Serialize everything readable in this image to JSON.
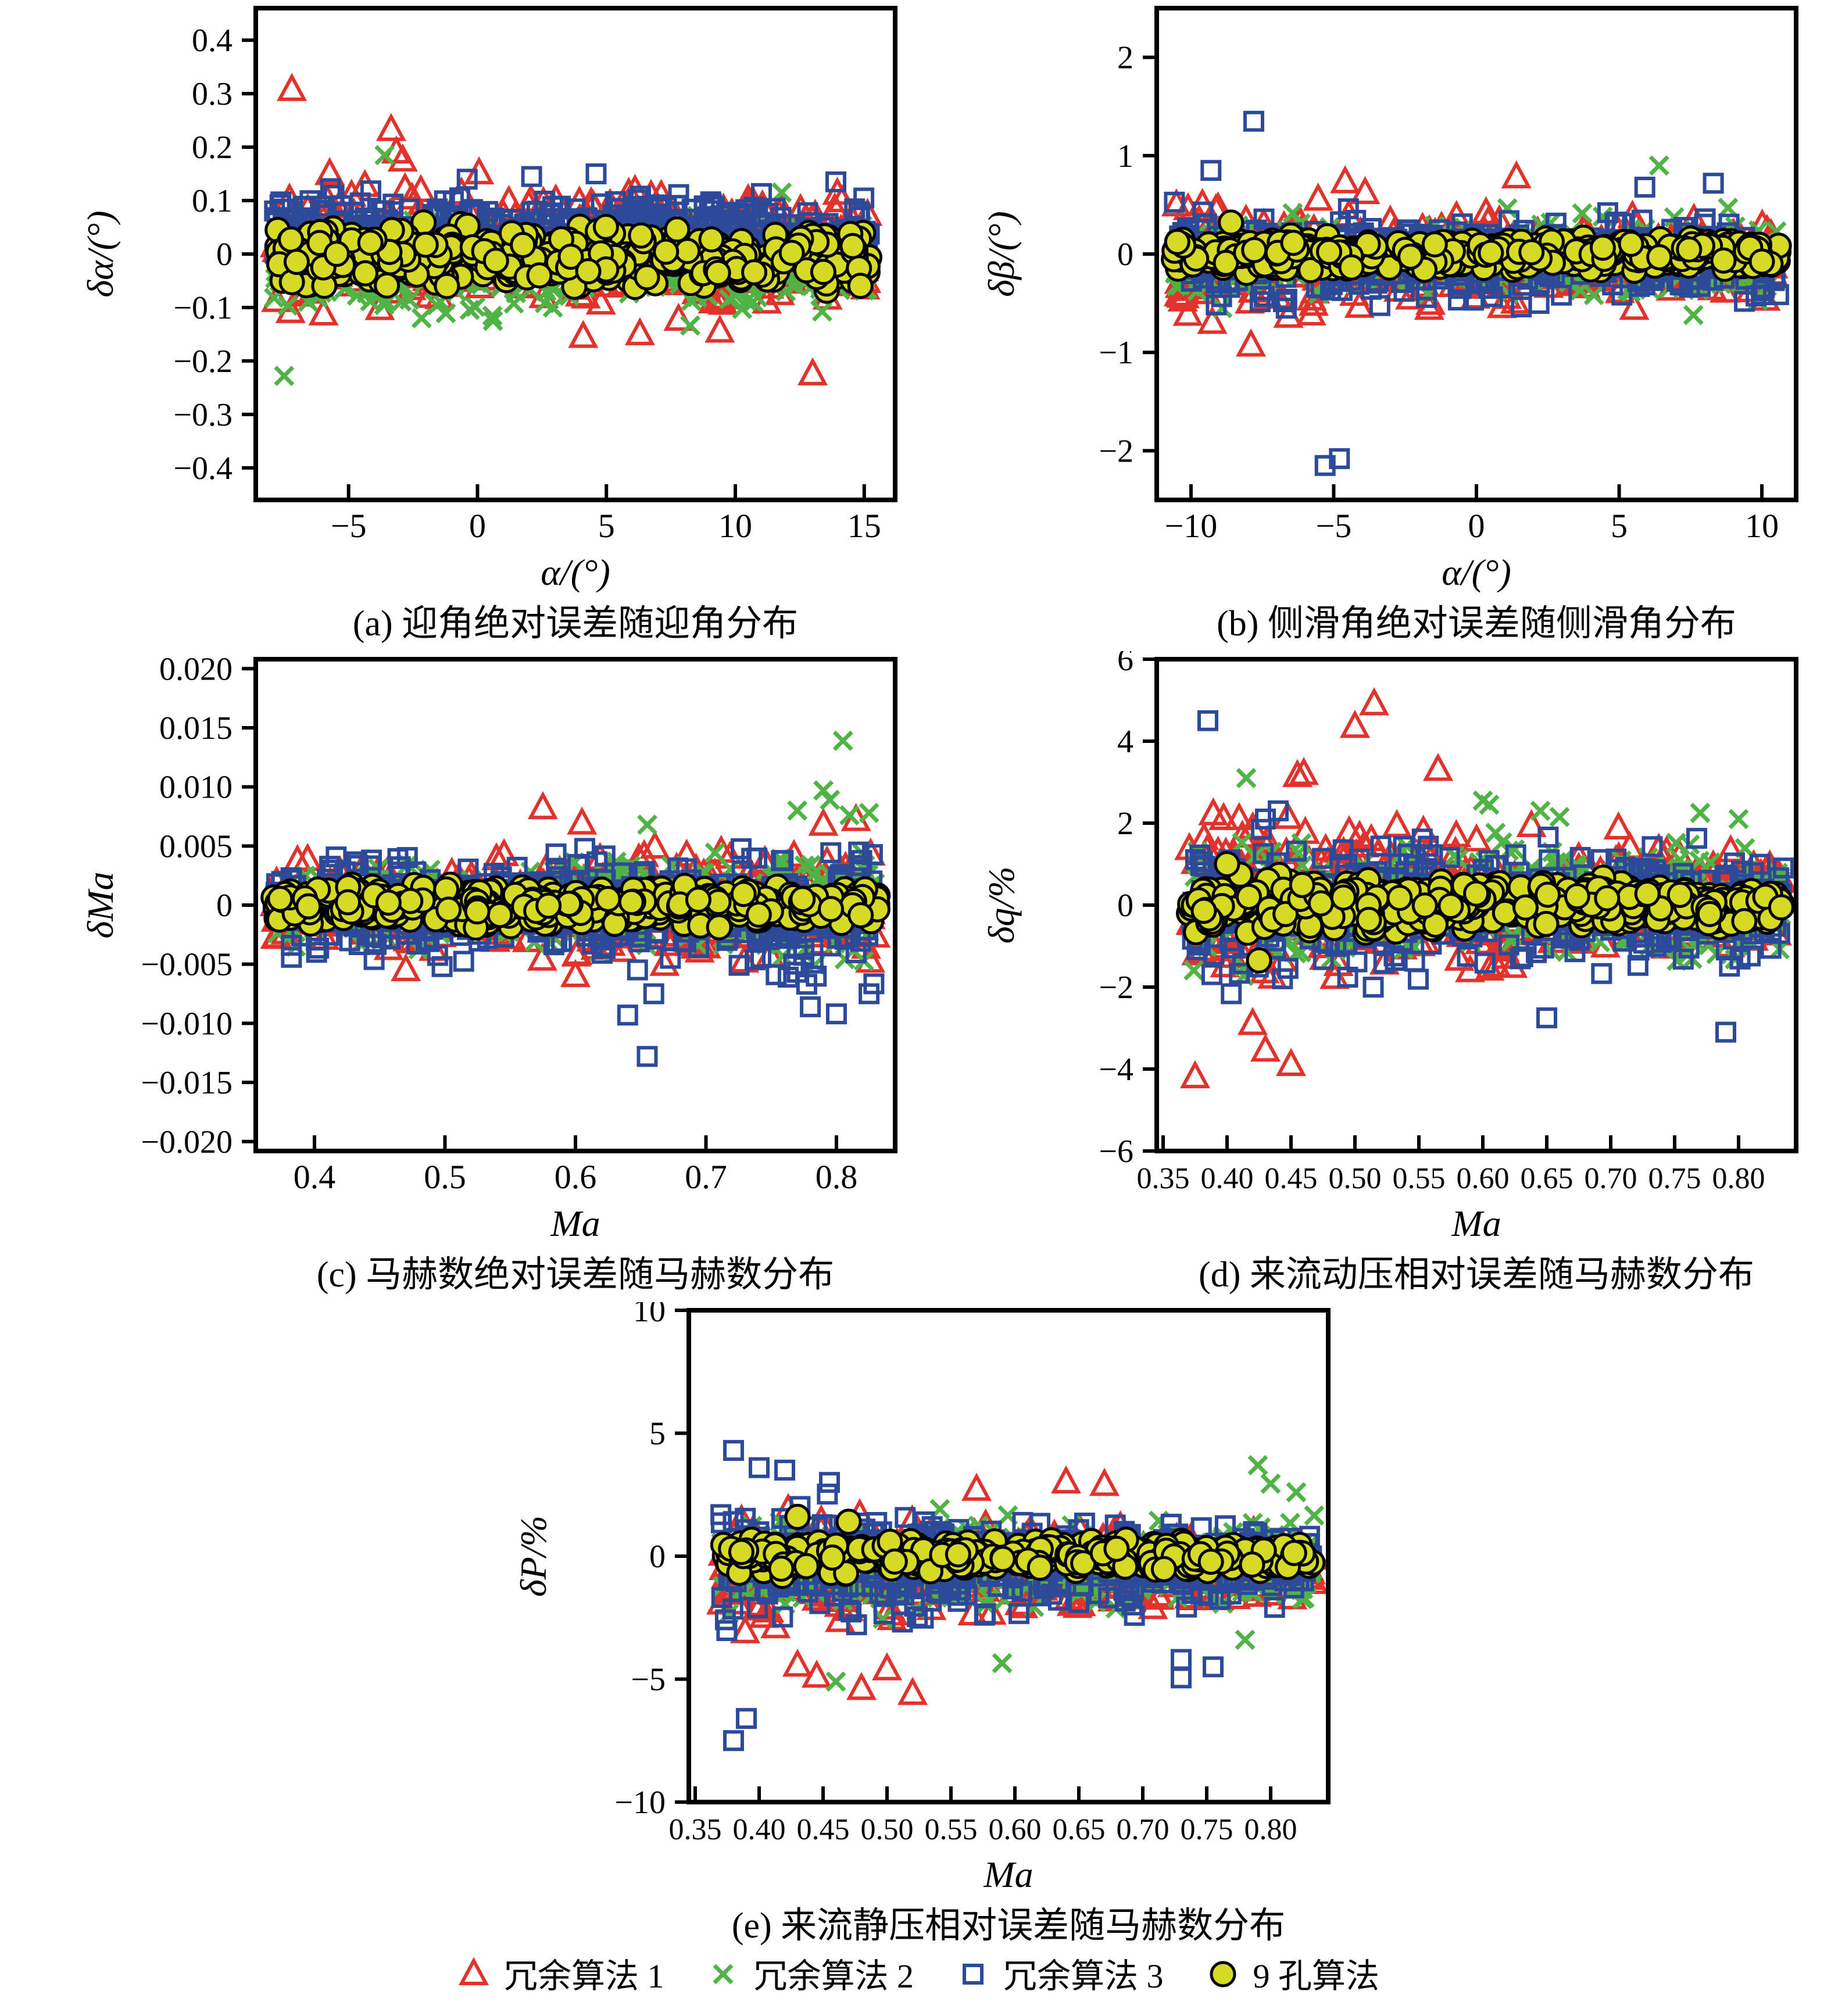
{
  "page": {
    "background": "#ffffff"
  },
  "legend": {
    "items": [
      {
        "label": "冗余算法 1",
        "marker": "triangle-open",
        "color": "#e2322c"
      },
      {
        "label": "冗余算法 2",
        "marker": "x-cross",
        "color": "#4fb345"
      },
      {
        "label": "冗余算法 3",
        "marker": "square-open",
        "color": "#2d4a9a"
      },
      {
        "label": "9 孔算法",
        "marker": "circle-filled",
        "color": "#d6da25",
        "edge_color": "#000000"
      }
    ]
  },
  "chart_data": [
    {
      "id": "a",
      "type": "scatter",
      "caption": "(a) 迎角绝对误差随迎角分布",
      "xlabel": "α/(°)",
      "ylabel": "δα/(°)",
      "xlim": [
        -8.6,
        16.2
      ],
      "ylim": [
        -0.46,
        0.46
      ],
      "xticks": [
        -5,
        0,
        5,
        10,
        15
      ],
      "xtick_labels": [
        "−5",
        "0",
        "5",
        "10",
        "15"
      ],
      "yticks": [
        -0.4,
        -0.3,
        -0.2,
        -0.1,
        0,
        0.1,
        0.2,
        0.3,
        0.4
      ],
      "ytick_labels": [
        "−0.4",
        "−0.3",
        "−0.2",
        "−0.1",
        "0",
        "0.1",
        "0.2",
        "0.3",
        "0.4"
      ],
      "grid": false,
      "legend_position": "none",
      "series": [
        {
          "name": "冗余算法 1",
          "marker": "triangle-open",
          "color": "#e2322c",
          "cloud": {
            "n": 380,
            "x_range": [
              -7.9,
              15.2
            ],
            "y_center": 0.01,
            "y_halfwidth": [
              0.17,
              0.13
            ]
          },
          "outliers": [
            [
              -7.2,
              0.307
            ],
            [
              -3.35,
              0.232
            ],
            [
              -3.15,
              0.19
            ],
            [
              -2.9,
              0.175
            ],
            [
              13.0,
              -0.225
            ],
            [
              4.1,
              -0.155
            ],
            [
              9.4,
              -0.145
            ],
            [
              6.3,
              -0.15
            ]
          ]
        },
        {
          "name": "冗余算法 2",
          "marker": "x-cross",
          "color": "#4fb345",
          "cloud": {
            "n": 320,
            "x_range": [
              -7.9,
              15.2
            ],
            "y_center": -0.02,
            "y_halfwidth": [
              0.14,
              0.12
            ]
          },
          "outliers": [
            [
              -3.6,
              0.185
            ],
            [
              -7.5,
              -0.228
            ],
            [
              0.6,
              -0.125
            ],
            [
              11.8,
              0.115
            ]
          ]
        },
        {
          "name": "冗余算法 3",
          "marker": "square-open",
          "color": "#2d4a9a",
          "cloud": {
            "n": 380,
            "x_range": [
              -7.9,
              15.2
            ],
            "y_center": 0.045,
            "y_halfwidth": [
              0.1,
              0.095
            ]
          },
          "outliers": [
            [
              13.9,
              0.135
            ],
            [
              4.6,
              0.15
            ],
            [
              2.1,
              0.145
            ],
            [
              -0.4,
              0.14
            ]
          ]
        },
        {
          "name": "9 孔算法",
          "marker": "circle-filled",
          "color": "#d6da25",
          "edge_color": "#000000",
          "cloud": {
            "n": 520,
            "x_range": [
              -7.9,
              15.2
            ],
            "y_center": -0.005,
            "y_halfwidth": [
              0.075,
              0.075
            ]
          },
          "outliers": []
        }
      ]
    },
    {
      "id": "b",
      "type": "scatter",
      "caption": "(b) 侧滑角绝对误差随侧滑角分布",
      "xlabel": "α/(°)",
      "ylabel": "δβ/(°)",
      "xlim": [
        -11.2,
        11.2
      ],
      "ylim": [
        -2.5,
        2.5
      ],
      "xticks": [
        -10,
        -5,
        0,
        5,
        10
      ],
      "xtick_labels": [
        "−10",
        "−5",
        "0",
        "5",
        "10"
      ],
      "yticks": [
        -2,
        -1,
        0,
        1,
        2
      ],
      "ytick_labels": [
        "−2",
        "−1",
        "0",
        "1",
        "2"
      ],
      "grid": false,
      "legend_position": "none",
      "series": [
        {
          "name": "冗余算法 1",
          "marker": "triangle-open",
          "color": "#e2322c",
          "cloud": {
            "n": 380,
            "x_range": [
              -10.6,
              10.6
            ],
            "y_center": -0.05,
            "y_halfwidth": [
              0.75,
              0.55
            ]
          },
          "outliers": [
            [
              -7.9,
              -0.93
            ],
            [
              -9.6,
              0.5
            ],
            [
              -4.6,
              0.73
            ],
            [
              1.4,
              0.78
            ],
            [
              -3.9,
              0.62
            ]
          ]
        },
        {
          "name": "冗余算法 2",
          "marker": "x-cross",
          "color": "#4fb345",
          "cloud": {
            "n": 320,
            "x_range": [
              -10.6,
              10.6
            ],
            "y_center": -0.05,
            "y_halfwidth": [
              0.6,
              0.55
            ]
          },
          "outliers": [
            [
              6.4,
              0.9
            ],
            [
              7.6,
              -0.62
            ],
            [
              -8.9,
              -0.55
            ]
          ]
        },
        {
          "name": "冗余算法 3",
          "marker": "square-open",
          "color": "#2d4a9a",
          "cloud": {
            "n": 380,
            "x_range": [
              -10.6,
              10.6
            ],
            "y_center": -0.05,
            "y_halfwidth": [
              0.65,
              0.6
            ]
          },
          "outliers": [
            [
              -7.8,
              1.35
            ],
            [
              -5.3,
              -2.15
            ],
            [
              -4.8,
              -2.08
            ],
            [
              8.3,
              0.72
            ],
            [
              -9.3,
              0.85
            ],
            [
              5.9,
              0.68
            ]
          ]
        },
        {
          "name": "9 孔算法",
          "marker": "circle-filled",
          "color": "#d6da25",
          "edge_color": "#000000",
          "cloud": {
            "n": 520,
            "x_range": [
              -10.6,
              10.6
            ],
            "y_center": 0,
            "y_halfwidth": [
              0.22,
              0.2
            ]
          },
          "outliers": [
            [
              -8.6,
              0.32
            ]
          ]
        }
      ]
    },
    {
      "id": "c",
      "type": "scatter",
      "caption": "(c) 马赫数绝对误差随马赫数分布",
      "xlabel": "Ma",
      "ylabel": "δMa",
      "xlim": [
        0.355,
        0.845
      ],
      "ylim": [
        -0.0208,
        0.0208
      ],
      "xticks": [
        0.4,
        0.5,
        0.6,
        0.7,
        0.8
      ],
      "xtick_labels": [
        "0.4",
        "0.5",
        "0.6",
        "0.7",
        "0.8"
      ],
      "yticks": [
        -0.02,
        -0.015,
        -0.01,
        -0.005,
        0,
        0.005,
        0.01,
        0.015,
        0.02
      ],
      "ytick_labels": [
        "−0.020",
        "−0.015",
        "−0.010",
        "−0.005",
        "0",
        "0.005",
        "0.010",
        "0.015",
        "0.020"
      ],
      "grid": false,
      "legend_position": "none",
      "series": [
        {
          "name": "冗余算法 1",
          "marker": "triangle-open",
          "color": "#e2322c",
          "cloud": {
            "n": 420,
            "x_range": [
              0.368,
              0.832
            ],
            "y_center": 0,
            "y_halfwidth": [
              0.005,
              0.0065
            ]
          },
          "outliers": [
            [
              0.575,
              0.0082
            ],
            [
              0.605,
              0.0069
            ],
            [
              0.79,
              0.0068
            ],
            [
              0.815,
              0.0072
            ],
            [
              0.6,
              -0.006
            ],
            [
              0.47,
              -0.0055
            ]
          ]
        },
        {
          "name": "冗余算法 2",
          "marker": "x-cross",
          "color": "#4fb345",
          "cloud": {
            "n": 360,
            "x_range": [
              0.368,
              0.832
            ],
            "y_center": 0,
            "y_halfwidth": [
              0.0045,
              0.006
            ]
          },
          "outliers": [
            [
              0.805,
              0.0139
            ],
            [
              0.79,
              0.0097
            ],
            [
              0.795,
              0.0089
            ],
            [
              0.77,
              0.008
            ],
            [
              0.81,
              0.0076
            ],
            [
              0.655,
              0.0068
            ],
            [
              0.825,
              0.0078
            ]
          ]
        },
        {
          "name": "冗余算法 3",
          "marker": "square-open",
          "color": "#2d4a9a",
          "cloud": {
            "n": 420,
            "x_range": [
              0.368,
              0.832
            ],
            "y_center": -0.0005,
            "y_halfwidth": [
              0.006,
              0.007
            ]
          },
          "outliers": [
            [
              0.655,
              -0.0128
            ],
            [
              0.64,
              -0.0093
            ],
            [
              0.78,
              -0.0086
            ],
            [
              0.8,
              -0.0092
            ],
            [
              0.825,
              -0.0075
            ],
            [
              0.66,
              -0.0075
            ]
          ]
        },
        {
          "name": "9 孔算法",
          "marker": "circle-filled",
          "color": "#d6da25",
          "edge_color": "#000000",
          "cloud": {
            "n": 520,
            "x_range": [
              0.368,
              0.832
            ],
            "y_center": 0,
            "y_halfwidth": [
              0.0022,
              0.0022
            ]
          },
          "outliers": []
        }
      ]
    },
    {
      "id": "d",
      "type": "scatter",
      "caption": "(d) 来流动压相对误差随马赫数分布",
      "xlabel": "Ma",
      "ylabel": "δq/%",
      "xlim": [
        0.345,
        0.845
      ],
      "ylim": [
        -6,
        6
      ],
      "xticks": [
        0.35,
        0.4,
        0.45,
        0.5,
        0.55,
        0.6,
        0.65,
        0.7,
        0.75,
        0.8
      ],
      "xtick_labels": [
        "0.35",
        "0.40",
        "0.45",
        "0.50",
        "0.55",
        "0.60",
        "0.65",
        "0.70",
        "0.75",
        "0.80"
      ],
      "yticks": [
        -6,
        -4,
        -2,
        0,
        2,
        4,
        6
      ],
      "ytick_labels": [
        "−6",
        "−4",
        "−2",
        "0",
        "2",
        "4",
        "6"
      ],
      "grid": false,
      "legend_position": "none",
      "series": [
        {
          "name": "冗余算法 1",
          "marker": "triangle-open",
          "color": "#e2322c",
          "cloud": {
            "n": 420,
            "x_range": [
              0.37,
              0.835
            ],
            "y_center": 0.2,
            "y_halfwidth": [
              2.8,
              1.6
            ]
          },
          "outliers": [
            [
              0.515,
              4.9
            ],
            [
              0.5,
              4.35
            ],
            [
              0.565,
              3.3
            ],
            [
              0.46,
              3.2
            ],
            [
              0.455,
              3.15
            ],
            [
              0.375,
              -4.2
            ],
            [
              0.45,
              -3.9
            ],
            [
              0.43,
              -3.55
            ],
            [
              0.42,
              -2.9
            ]
          ]
        },
        {
          "name": "冗余算法 2",
          "marker": "x-cross",
          "color": "#4fb345",
          "cloud": {
            "n": 360,
            "x_range": [
              0.37,
              0.835
            ],
            "y_center": 0,
            "y_halfwidth": [
              2.0,
              1.7
            ]
          },
          "outliers": [
            [
              0.6,
              2.55
            ],
            [
              0.605,
              2.45
            ],
            [
              0.645,
              2.3
            ],
            [
              0.66,
              2.15
            ],
            [
              0.77,
              2.25
            ],
            [
              0.8,
              2.1
            ],
            [
              0.415,
              3.1
            ]
          ]
        },
        {
          "name": "冗余算法 3",
          "marker": "square-open",
          "color": "#2d4a9a",
          "cloud": {
            "n": 420,
            "x_range": [
              0.37,
              0.835
            ],
            "y_center": 0,
            "y_halfwidth": [
              2.5,
              1.8
            ]
          },
          "outliers": [
            [
              0.385,
              4.5
            ],
            [
              0.79,
              -3.1
            ],
            [
              0.65,
              -2.75
            ],
            [
              0.44,
              2.3
            ],
            [
              0.43,
              2.1
            ]
          ]
        },
        {
          "name": "9 孔算法",
          "marker": "circle-filled",
          "color": "#d6da25",
          "edge_color": "#000000",
          "cloud": {
            "n": 520,
            "x_range": [
              0.37,
              0.835
            ],
            "y_center": 0,
            "y_halfwidth": [
              1.0,
              0.6
            ]
          },
          "outliers": [
            [
              0.4,
              1.0
            ],
            [
              0.425,
              -1.35
            ]
          ]
        }
      ]
    },
    {
      "id": "e",
      "type": "scatter",
      "caption": "(e) 来流静压相对误差随马赫数分布",
      "xlabel": "Ma",
      "ylabel": "δP/%",
      "xlim": [
        0.345,
        0.845
      ],
      "ylim": [
        -10,
        10
      ],
      "xticks": [
        0.35,
        0.4,
        0.45,
        0.5,
        0.55,
        0.6,
        0.65,
        0.7,
        0.75,
        0.8
      ],
      "xtick_labels": [
        "0.35",
        "0.40",
        "0.45",
        "0.50",
        "0.55",
        "0.60",
        "0.65",
        "0.70",
        "0.75",
        "0.80"
      ],
      "yticks": [
        -10,
        -5,
        0,
        5,
        10
      ],
      "ytick_labels": [
        "−10",
        "−5",
        "0",
        "5",
        "10"
      ],
      "grid": false,
      "legend_position": "none",
      "series": [
        {
          "name": "冗余算法 1",
          "marker": "triangle-open",
          "color": "#e2322c",
          "cloud": {
            "n": 420,
            "x_range": [
              0.37,
              0.835
            ],
            "y_center": -0.5,
            "y_halfwidth": [
              3.2,
              1.6
            ]
          },
          "outliers": [
            [
              0.48,
              -5.4
            ],
            [
              0.52,
              -5.6
            ],
            [
              0.445,
              -4.9
            ],
            [
              0.43,
              -4.45
            ],
            [
              0.5,
              -4.6
            ],
            [
              0.64,
              3.0
            ],
            [
              0.67,
              2.9
            ],
            [
              0.57,
              2.7
            ]
          ]
        },
        {
          "name": "冗余算法 2",
          "marker": "x-cross",
          "color": "#4fb345",
          "cloud": {
            "n": 360,
            "x_range": [
              0.37,
              0.835
            ],
            "y_center": -0.3,
            "y_halfwidth": [
              2.8,
              2.3
            ]
          },
          "outliers": [
            [
              0.79,
              3.7
            ],
            [
              0.8,
              2.95
            ],
            [
              0.78,
              -3.4
            ],
            [
              0.59,
              -4.35
            ],
            [
              0.46,
              -5.1
            ],
            [
              0.82,
              2.6
            ]
          ]
        },
        {
          "name": "冗余算法 3",
          "marker": "square-open",
          "color": "#2d4a9a",
          "cloud": {
            "n": 420,
            "x_range": [
              0.37,
              0.835
            ],
            "y_center": -0.3,
            "y_halfwidth": [
              3.4,
              2.2
            ]
          },
          "outliers": [
            [
              0.38,
              -7.5
            ],
            [
              0.39,
              -6.6
            ],
            [
              0.73,
              -4.95
            ],
            [
              0.755,
              -4.5
            ],
            [
              0.38,
              4.3
            ],
            [
              0.4,
              3.6
            ],
            [
              0.42,
              3.5
            ],
            [
              0.455,
              3.0
            ],
            [
              0.73,
              -4.2
            ]
          ]
        },
        {
          "name": "9 孔算法",
          "marker": "circle-filled",
          "color": "#d6da25",
          "edge_color": "#000000",
          "cloud": {
            "n": 520,
            "x_range": [
              0.37,
              0.835
            ],
            "y_center": 0,
            "y_halfwidth": [
              0.9,
              0.7
            ]
          },
          "outliers": [
            [
              0.43,
              1.6
            ],
            [
              0.47,
              1.4
            ]
          ]
        }
      ]
    }
  ]
}
